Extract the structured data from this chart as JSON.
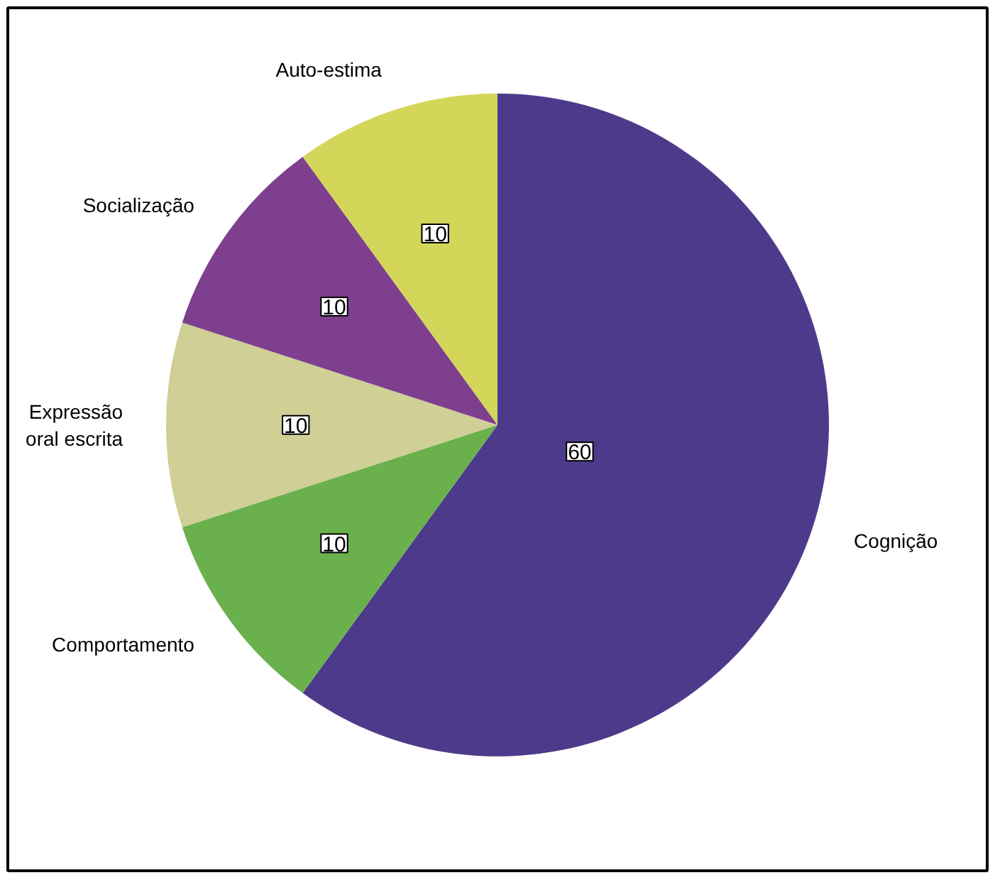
{
  "chart_data": {
    "type": "pie",
    "categories": [
      "Cognição",
      "Comportamento",
      "Expressão oral escrita",
      "Socialização",
      "Auto-estima"
    ],
    "values": [
      60,
      10,
      10,
      10,
      10
    ],
    "colors": [
      "#4e3a8a",
      "#6ab04c",
      "#cfcf96",
      "#7e3f8f",
      "#d4d65a"
    ],
    "data_labels": true
  }
}
